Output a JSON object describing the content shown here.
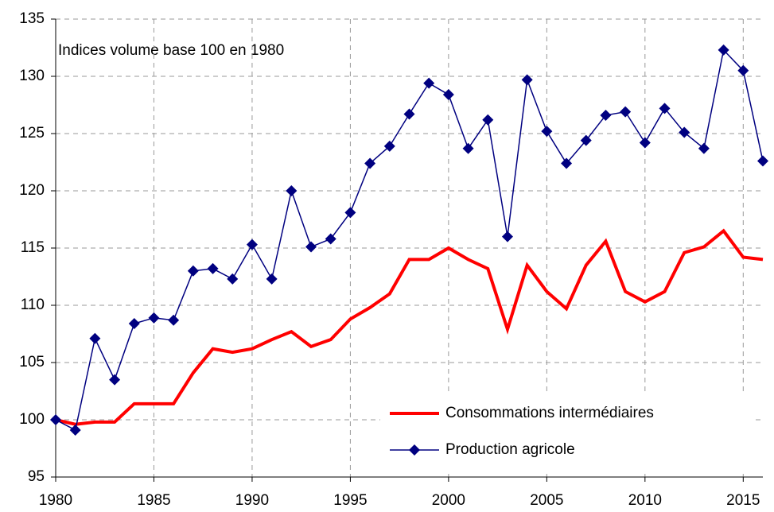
{
  "chart_data": {
    "type": "line",
    "annotation": "Indices volume base 100 en 1980",
    "x": [
      1980,
      1981,
      1982,
      1983,
      1984,
      1985,
      1986,
      1987,
      1988,
      1989,
      1990,
      1991,
      1992,
      1993,
      1994,
      1995,
      1996,
      1997,
      1998,
      1999,
      2000,
      2001,
      2002,
      2003,
      2004,
      2005,
      2006,
      2007,
      2008,
      2009,
      2010,
      2011,
      2012,
      2013,
      2014,
      2015,
      2016
    ],
    "series": [
      {
        "name": "Consommations intermédiaires",
        "color": "#ff0000",
        "marker": false,
        "values": [
          100,
          99.6,
          99.8,
          99.8,
          101.4,
          101.4,
          101.4,
          104.1,
          106.2,
          105.9,
          106.2,
          107.0,
          107.7,
          106.4,
          107.0,
          108.8,
          109.8,
          111.0,
          114.0,
          114.0,
          115.0,
          114.0,
          113.2,
          107.9,
          113.5,
          111.2,
          109.7,
          113.5,
          115.6,
          111.2,
          110.3,
          111.2,
          114.6,
          115.1,
          116.5,
          114.2,
          114.0
        ]
      },
      {
        "name": "Production agricole",
        "color": "#000080",
        "marker": true,
        "values": [
          100,
          99.1,
          107.1,
          103.5,
          108.4,
          108.9,
          108.7,
          113.0,
          113.2,
          112.3,
          115.3,
          112.3,
          120.0,
          115.1,
          115.8,
          118.1,
          122.4,
          123.9,
          126.7,
          129.4,
          128.4,
          123.7,
          126.2,
          116.0,
          129.7,
          125.2,
          122.4,
          124.4,
          126.6,
          126.9,
          124.2,
          127.2,
          125.1,
          123.7,
          132.3,
          130.5,
          122.6
        ]
      }
    ],
    "xlim": [
      1980,
      2016
    ],
    "xticks": [
      1980,
      1985,
      1990,
      1995,
      2000,
      2005,
      2010,
      2015
    ],
    "ylim": [
      95,
      135
    ],
    "yticks": [
      95,
      100,
      105,
      110,
      115,
      120,
      125,
      130,
      135
    ],
    "grid": true,
    "legend": "lower right"
  }
}
